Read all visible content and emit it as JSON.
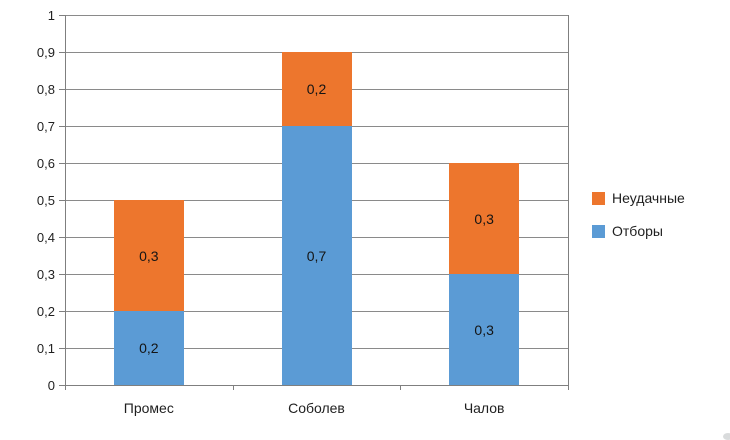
{
  "chart_data": {
    "type": "bar",
    "stacked": true,
    "title": "",
    "xlabel": "",
    "ylabel": "",
    "categories": [
      "Промес",
      "Соболев",
      "Чалов"
    ],
    "series": [
      {
        "name": "Отборы",
        "color": "#5B9BD5",
        "values": [
          0.2,
          0.7,
          0.3
        ],
        "value_labels": [
          "0,2",
          "0,7",
          "0,3"
        ]
      },
      {
        "name": "Неудачные",
        "color": "#ED762D",
        "values": [
          0.3,
          0.2,
          0.3
        ],
        "value_labels": [
          "0,3",
          "0,2",
          "0,3"
        ]
      }
    ],
    "y_axis": {
      "min": 0,
      "max": 1,
      "step": 0.1,
      "tick_labels": [
        "0",
        "0,1",
        "0,2",
        "0,3",
        "0,4",
        "0,5",
        "0,6",
        "0,7",
        "0,8",
        "0,9",
        "1"
      ]
    },
    "grid": true,
    "legend": {
      "position": "right",
      "items": [
        {
          "label": "Неудачные",
          "color": "#ED762D"
        },
        {
          "label": "Отборы",
          "color": "#5B9BD5"
        }
      ]
    }
  },
  "colors": {
    "background": "#FFFFFF",
    "gridline": "#8A8A8A",
    "axis": "#7F7F7F",
    "text": "#1F1F1F"
  }
}
